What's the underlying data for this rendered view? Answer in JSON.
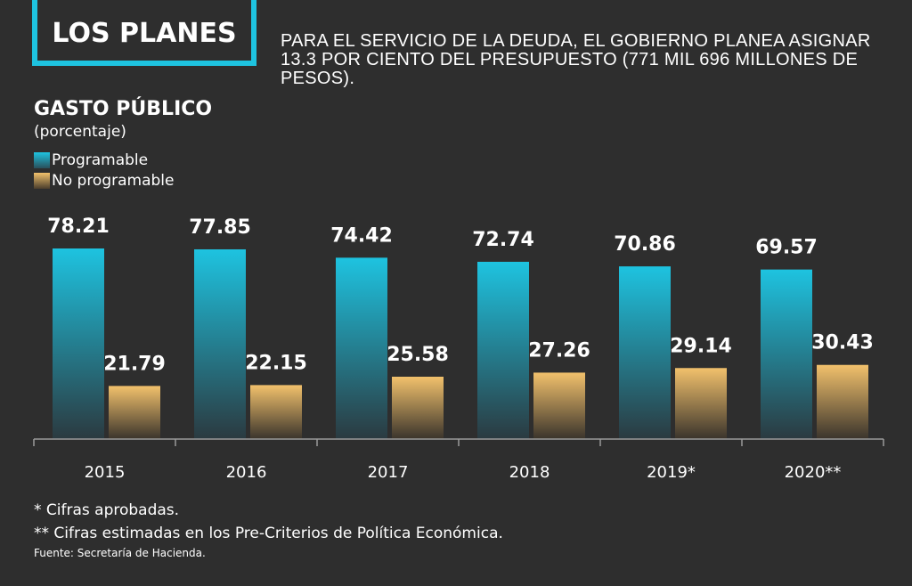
{
  "header": {
    "title": "LOS PLANES",
    "subtitle": "PARA EL SERVICIO DE LA DEUDA, EL GOBIERNO PLANEA ASIGNAR 13.3 POR CIENTO DEL PRESUPUESTO (771 MIL 696 MILLONES DE PESOS)."
  },
  "colors": {
    "accent": "#1ec3e0",
    "programable_top": "#1ec3e0",
    "programable_bottom": "#2b3a40",
    "no_programable_top": "#f2c16c",
    "no_programable_bottom": "#3a342c"
  },
  "chart_data": {
    "type": "bar",
    "title": "GASTO PÚBLICO",
    "unit": "(porcentaje)",
    "categories": [
      "2015",
      "2016",
      "2017",
      "2018",
      "2019*",
      "2020**"
    ],
    "series": [
      {
        "name": "Programable",
        "values": [
          78.21,
          77.85,
          74.42,
          72.74,
          70.86,
          69.57
        ]
      },
      {
        "name": "No programable",
        "values": [
          21.79,
          22.15,
          25.58,
          27.26,
          29.14,
          30.43
        ]
      }
    ],
    "labels": [
      [
        "78.21",
        "77.85",
        "74.42",
        "72.74",
        "70.86",
        "69.57"
      ],
      [
        "21.79",
        "22.15",
        "25.58",
        "27.26",
        "29.14",
        "30.43"
      ]
    ],
    "ylim": [
      0,
      80
    ],
    "grid": false,
    "legend": "top-left"
  },
  "notes": [
    "* Cifras aprobadas.",
    "** Cifras estimadas en los Pre-Criterios de Política Económica."
  ],
  "source": "Fuente: Secretaría de Hacienda."
}
